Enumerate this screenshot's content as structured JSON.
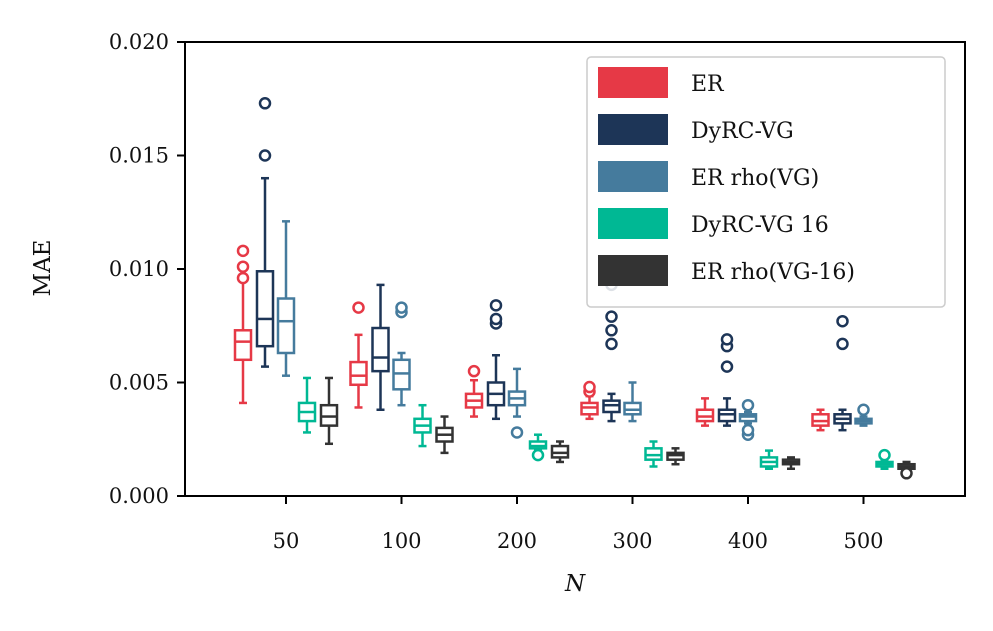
{
  "chart_data": {
    "type": "box",
    "title": "",
    "xlabel": "N",
    "ylabel": "MAE",
    "ylim": [
      0,
      0.02
    ],
    "yticks": [
      "0.000",
      "0.005",
      "0.010",
      "0.015",
      "0.020"
    ],
    "categories": [
      "50",
      "100",
      "200",
      "300",
      "400",
      "500"
    ],
    "legend": {
      "placement": "top-right"
    },
    "series": [
      {
        "name": "ER",
        "color": "#e63946",
        "boxes": [
          {
            "whislo": 0.0041,
            "q1": 0.006,
            "med": 0.0068,
            "q3": 0.0073,
            "whishi": 0.0095,
            "fliers": [
              0.0096,
              0.0101,
              0.0108
            ]
          },
          {
            "whislo": 0.0039,
            "q1": 0.0049,
            "med": 0.0053,
            "q3": 0.0059,
            "whishi": 0.0071,
            "fliers": [
              0.0083
            ]
          },
          {
            "whislo": 0.0035,
            "q1": 0.0039,
            "med": 0.0042,
            "q3": 0.0045,
            "whishi": 0.0051,
            "fliers": [
              0.0055
            ]
          },
          {
            "whislo": 0.0034,
            "q1": 0.0036,
            "med": 0.0039,
            "q3": 0.0041,
            "whishi": 0.0044,
            "fliers": [
              0.0046,
              0.0048
            ]
          },
          {
            "whislo": 0.0031,
            "q1": 0.0033,
            "med": 0.0035,
            "q3": 0.0038,
            "whishi": 0.0043,
            "fliers": []
          },
          {
            "whislo": 0.0029,
            "q1": 0.0031,
            "med": 0.0033,
            "q3": 0.0036,
            "whishi": 0.0038,
            "fliers": []
          }
        ]
      },
      {
        "name": "DyRC-VG",
        "color": "#1d3557",
        "boxes": [
          {
            "whislo": 0.0057,
            "q1": 0.0066,
            "med": 0.0078,
            "q3": 0.0099,
            "whishi": 0.014,
            "fliers": [
              0.015,
              0.0173
            ]
          },
          {
            "whislo": 0.0038,
            "q1": 0.0055,
            "med": 0.0061,
            "q3": 0.0074,
            "whishi": 0.0093,
            "fliers": []
          },
          {
            "whislo": 0.0034,
            "q1": 0.004,
            "med": 0.0045,
            "q3": 0.005,
            "whishi": 0.0062,
            "fliers": [
              0.0076,
              0.0078,
              0.0084
            ]
          },
          {
            "whislo": 0.0033,
            "q1": 0.0037,
            "med": 0.004,
            "q3": 0.0042,
            "whishi": 0.0045,
            "fliers": [
              0.0067,
              0.0073,
              0.0079,
              0.0093
            ]
          },
          {
            "whislo": 0.0031,
            "q1": 0.0033,
            "med": 0.0036,
            "q3": 0.0038,
            "whishi": 0.0043,
            "fliers": [
              0.0057,
              0.0066,
              0.0069
            ]
          },
          {
            "whislo": 0.0029,
            "q1": 0.0032,
            "med": 0.0034,
            "q3": 0.0036,
            "whishi": 0.0038,
            "fliers": [
              0.0067,
              0.0077
            ]
          }
        ]
      },
      {
        "name": "ER rho(VG)",
        "color": "#457b9d",
        "boxes": [
          {
            "whislo": 0.0053,
            "q1": 0.0063,
            "med": 0.0077,
            "q3": 0.0087,
            "whishi": 0.0121,
            "fliers": []
          },
          {
            "whislo": 0.004,
            "q1": 0.0047,
            "med": 0.0054,
            "q3": 0.006,
            "whishi": 0.0063,
            "fliers": [
              0.0081,
              0.0083
            ]
          },
          {
            "whislo": 0.0035,
            "q1": 0.004,
            "med": 0.0043,
            "q3": 0.0046,
            "whishi": 0.0056,
            "fliers": [
              0.0028
            ]
          },
          {
            "whislo": 0.0033,
            "q1": 0.0036,
            "med": 0.0038,
            "q3": 0.0041,
            "whishi": 0.005,
            "fliers": []
          },
          {
            "whislo": 0.0032,
            "q1": 0.0033,
            "med": 0.0035,
            "q3": 0.0036,
            "whishi": 0.0037,
            "fliers": [
              0.0027,
              0.0029,
              0.004
            ]
          },
          {
            "whislo": 0.0031,
            "q1": 0.0032,
            "med": 0.0033,
            "q3": 0.0034,
            "whishi": 0.0035,
            "fliers": [
              0.0038
            ]
          }
        ]
      },
      {
        "name": "DyRC-VG 16",
        "color": "#00b894",
        "boxes": [
          {
            "whislo": 0.0028,
            "q1": 0.0033,
            "med": 0.0037,
            "q3": 0.0041,
            "whishi": 0.0052,
            "fliers": []
          },
          {
            "whislo": 0.0022,
            "q1": 0.0028,
            "med": 0.0031,
            "q3": 0.0034,
            "whishi": 0.004,
            "fliers": []
          },
          {
            "whislo": 0.002,
            "q1": 0.0021,
            "med": 0.0022,
            "q3": 0.0024,
            "whishi": 0.0027,
            "fliers": [
              0.0018
            ]
          },
          {
            "whislo": 0.0013,
            "q1": 0.0016,
            "med": 0.0018,
            "q3": 0.0021,
            "whishi": 0.0024,
            "fliers": []
          },
          {
            "whislo": 0.0012,
            "q1": 0.0013,
            "med": 0.0015,
            "q3": 0.0017,
            "whishi": 0.002,
            "fliers": []
          },
          {
            "whislo": 0.0012,
            "q1": 0.0013,
            "med": 0.0014,
            "q3": 0.0015,
            "whishi": 0.0016,
            "fliers": [
              0.0018
            ]
          }
        ]
      },
      {
        "name": "ER rho(VG-16)",
        "color": "#333333",
        "boxes": [
          {
            "whislo": 0.0023,
            "q1": 0.0031,
            "med": 0.0035,
            "q3": 0.004,
            "whishi": 0.0052,
            "fliers": []
          },
          {
            "whislo": 0.0019,
            "q1": 0.0024,
            "med": 0.0027,
            "q3": 0.003,
            "whishi": 0.0035,
            "fliers": []
          },
          {
            "whislo": 0.0015,
            "q1": 0.0017,
            "med": 0.0019,
            "q3": 0.0022,
            "whishi": 0.0024,
            "fliers": []
          },
          {
            "whislo": 0.0014,
            "q1": 0.0016,
            "med": 0.0018,
            "q3": 0.0019,
            "whishi": 0.0021,
            "fliers": []
          },
          {
            "whislo": 0.0012,
            "q1": 0.0014,
            "med": 0.0015,
            "q3": 0.0016,
            "whishi": 0.0017,
            "fliers": []
          },
          {
            "whislo": 0.0011,
            "q1": 0.0012,
            "med": 0.0013,
            "q3": 0.0014,
            "whishi": 0.0015,
            "fliers": [
              0.001
            ]
          }
        ]
      }
    ]
  }
}
